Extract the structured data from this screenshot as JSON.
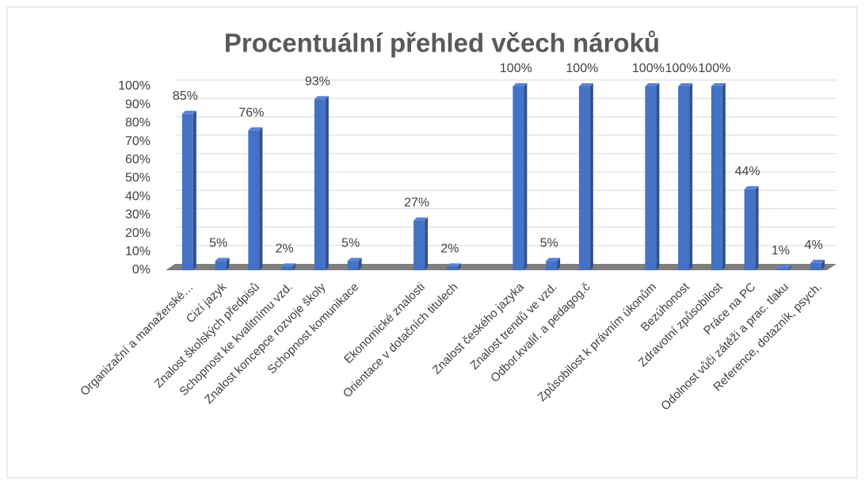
{
  "chart_data": {
    "type": "bar",
    "title": "Procentuální přehled včech nároků",
    "categories": [
      "Organizační a manažerské…",
      "Cizí jazyk",
      "Znalost školských předpisů",
      "Schopnost ke kvalitnímu vzd.",
      "Znalost koncepce rozvoje školy",
      "Schopnost komunikace",
      null,
      "Ekonomické znalosti",
      "Orientace v dotačních titulech",
      null,
      "Znalost českého jazyka",
      "Znalost trendů ve vzd.",
      "Odbor.kvalif. a pedagog.č",
      null,
      "Způsobilost k právním úkonům",
      "Bezúhonost",
      "Zdravotní způsobilost",
      "Práce na PC",
      "Odolnost vůči zátěži a prac. tlaku",
      "Reference, dotazník, psych."
    ],
    "values": [
      85,
      5,
      76,
      2,
      93,
      5,
      null,
      27,
      2,
      null,
      100,
      5,
      100,
      null,
      100,
      100,
      100,
      44,
      1,
      4
    ],
    "value_labels": [
      "85%",
      "5%",
      "76%",
      "2%",
      "93%",
      "5%",
      null,
      "27%",
      "2%",
      null,
      "100%",
      "5%",
      "100%",
      null,
      "100%",
      "100%",
      "100%",
      "44%",
      "1%",
      "4%"
    ],
    "color": "#4472c4",
    "ylim": [
      0,
      100
    ],
    "yticks": [
      {
        "value": 0,
        "label": "0%"
      },
      {
        "value": 10,
        "label": "10%"
      },
      {
        "value": 20,
        "label": "20%"
      },
      {
        "value": 30,
        "label": "30%"
      },
      {
        "value": 40,
        "label": "40%"
      },
      {
        "value": 50,
        "label": "50%"
      },
      {
        "value": 60,
        "label": "60%"
      },
      {
        "value": 70,
        "label": "70%"
      },
      {
        "value": 80,
        "label": "80%"
      },
      {
        "value": 90,
        "label": "90%"
      },
      {
        "value": 100,
        "label": "100%"
      }
    ],
    "grid": true
  }
}
